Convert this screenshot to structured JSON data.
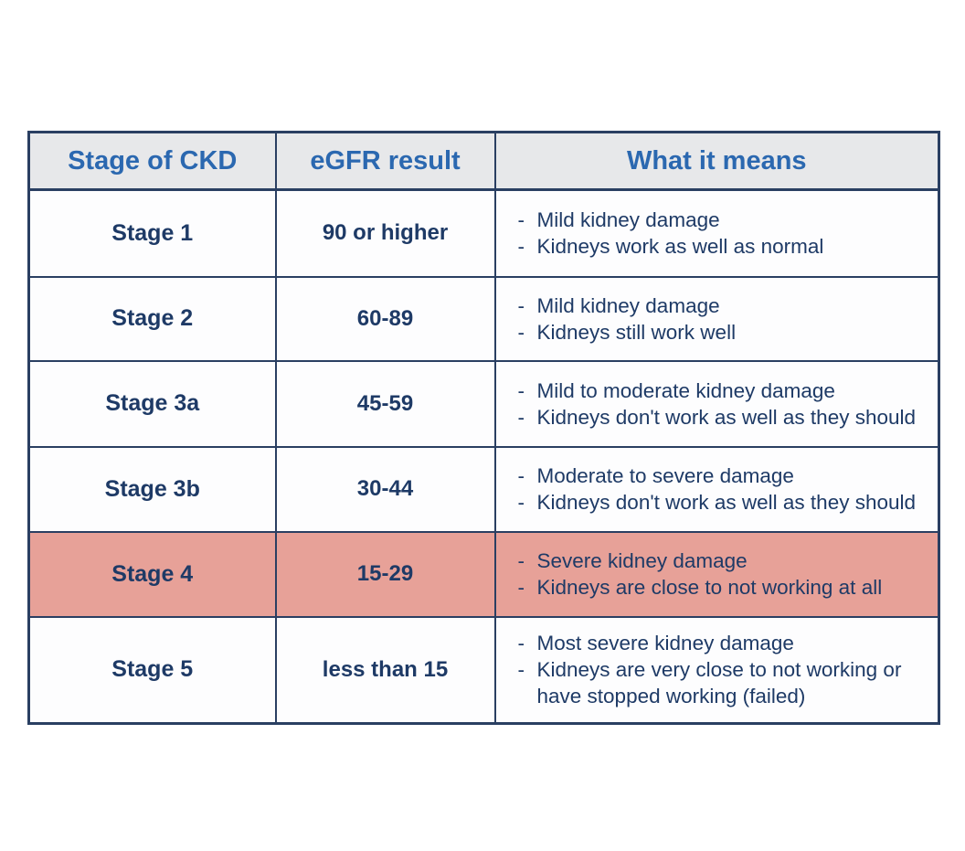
{
  "colors": {
    "page-bg": "#ffffff",
    "cell-bg": "#fdfdfe",
    "header-bg": "#e7e8ea",
    "header-text": "#2b68b0",
    "body-text": "#1e3a66",
    "border": "#2a3f62",
    "highlight": "#e7a198"
  },
  "table": {
    "bullet_char": "-",
    "headers": {
      "stage": "Stage of CKD",
      "egfr": "eGFR result",
      "meaning": "What it means"
    },
    "rows": [
      {
        "stage": "Stage 1",
        "egfr": "90 or higher",
        "highlighted": false,
        "meanings": [
          "Mild kidney damage",
          "Kidneys work as well as normal"
        ]
      },
      {
        "stage": "Stage 2",
        "egfr": "60-89",
        "highlighted": false,
        "meanings": [
          "Mild kidney damage",
          "Kidneys still work well"
        ]
      },
      {
        "stage": "Stage 3a",
        "egfr": "45-59",
        "highlighted": false,
        "meanings": [
          "Mild to moderate kidney damage",
          "Kidneys don't work as well as they should"
        ]
      },
      {
        "stage": "Stage 3b",
        "egfr": "30-44",
        "highlighted": false,
        "meanings": [
          "Moderate to severe damage",
          "Kidneys don't work as well as they should"
        ]
      },
      {
        "stage": "Stage 4",
        "egfr": "15-29",
        "highlighted": true,
        "meanings": [
          "Severe kidney damage",
          "Kidneys are close to not working at all"
        ]
      },
      {
        "stage": "Stage 5",
        "egfr": "less than 15",
        "highlighted": false,
        "meanings": [
          "Most severe kidney damage",
          "Kidneys are very close to not working or have stopped working (failed)"
        ]
      }
    ]
  }
}
